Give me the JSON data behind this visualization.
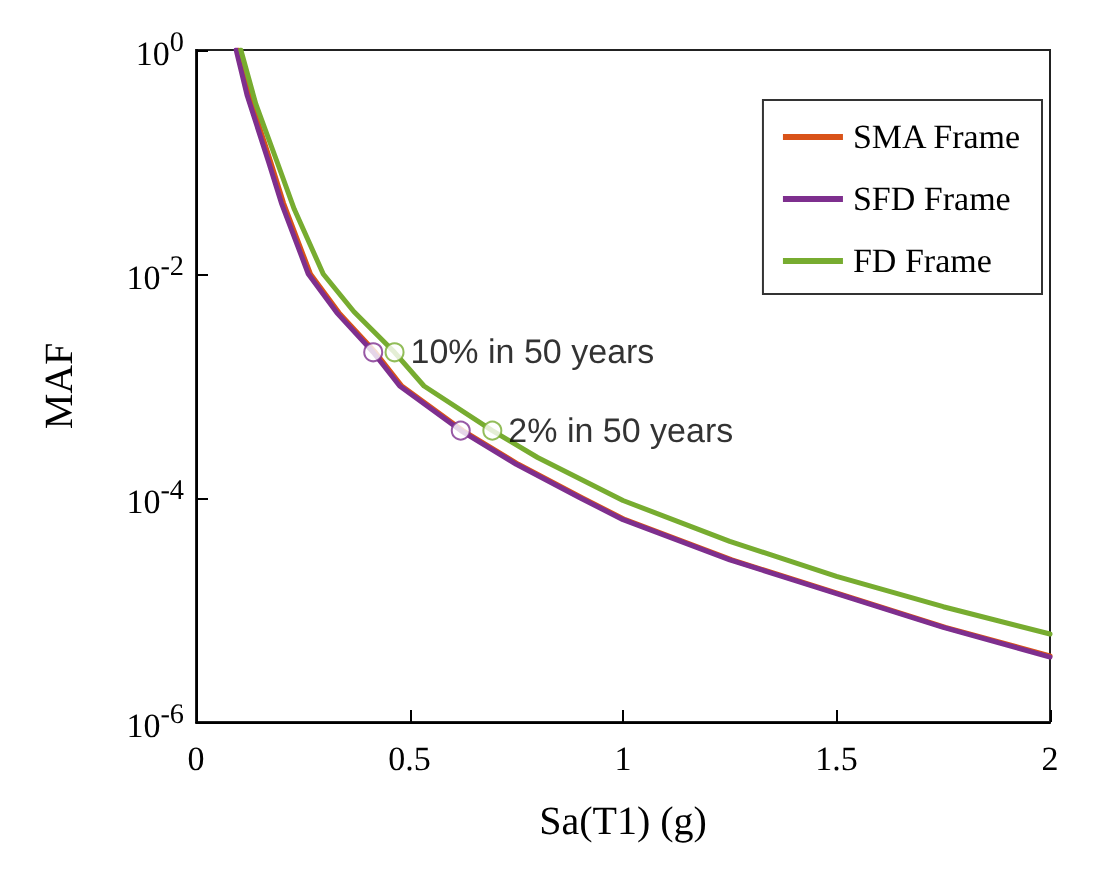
{
  "chart_data": {
    "type": "line",
    "xlabel": "Sa(T1) (g)",
    "ylabel": "MAF",
    "log": "y",
    "xlim": [
      0,
      2
    ],
    "xticks": [
      0,
      0.5,
      1,
      1.5,
      2
    ],
    "ylim": [
      1e-06,
      1
    ],
    "yticks": [
      {
        "value": 1,
        "label": "10$^{0}$"
      },
      {
        "value": 0.01,
        "label": "10$^{-2}$"
      },
      {
        "value": 0.0001,
        "label": "10$^{-4}$"
      },
      {
        "value": 1e-06,
        "label": "10$^{-6}$"
      }
    ],
    "grid": false,
    "legend": "top right",
    "marker": "none",
    "line_style": "solid",
    "series": [
      {
        "name": "SMA Frame",
        "color": "#d95319",
        "x": [
          0.099,
          0.125,
          0.175,
          0.205,
          0.268,
          0.335,
          0.42,
          0.482,
          0.625,
          0.755,
          0.905,
          1.005,
          1.255,
          1.505,
          1.755,
          2
        ],
        "values": [
          1,
          0.39,
          0.1,
          0.043,
          0.01,
          0.0045,
          0.002,
          0.001,
          0.0004,
          0.0002,
          0.0001,
          6.4e-05,
          2.8e-05,
          1.4e-05,
          7e-06,
          3.9e-06
        ]
      },
      {
        "name": "SFD Frame",
        "color": "#7e2f8e",
        "x": [
          0.094,
          0.12,
          0.17,
          0.2,
          0.263,
          0.33,
          0.415,
          0.477,
          0.62,
          0.75,
          0.9,
          1,
          1.25,
          1.5,
          1.75,
          2
        ],
        "values": [
          1,
          0.39,
          0.1,
          0.043,
          0.01,
          0.0045,
          0.002,
          0.001,
          0.0004,
          0.0002,
          0.0001,
          6.4e-05,
          2.8e-05,
          1.4e-05,
          7e-06,
          3.8e-06
        ]
      },
      {
        "name": "FD Frame",
        "color": "#77ac30",
        "x": [
          0.105,
          0.14,
          0.19,
          0.23,
          0.298,
          0.37,
          0.465,
          0.534,
          0.694,
          0.8,
          1,
          1.25,
          1.5,
          1.75,
          2
        ],
        "values": [
          1,
          0.33,
          0.1,
          0.038,
          0.01,
          0.0046,
          0.002,
          0.001,
          0.0004,
          0.00023,
          9.5e-05,
          4.1e-05,
          2e-05,
          1.07e-05,
          6.1e-06
        ]
      },
      {
        "type": "scatter",
        "marker": "circle",
        "color": "#7e2f8e",
        "x": [
          0.415,
          0.62
        ],
        "values": [
          0.002,
          0.0004
        ]
      },
      {
        "type": "scatter",
        "marker": "circle",
        "color": "#77ac30",
        "x": [
          0.465,
          0.694
        ],
        "values": [
          0.002,
          0.0004
        ]
      }
    ],
    "annotations": [
      {
        "text": "10% in 50 years",
        "x": 0.465,
        "y": 0.002
      },
      {
        "text": "2% in 50 years",
        "x": 0.694,
        "y": 0.0004
      }
    ]
  }
}
